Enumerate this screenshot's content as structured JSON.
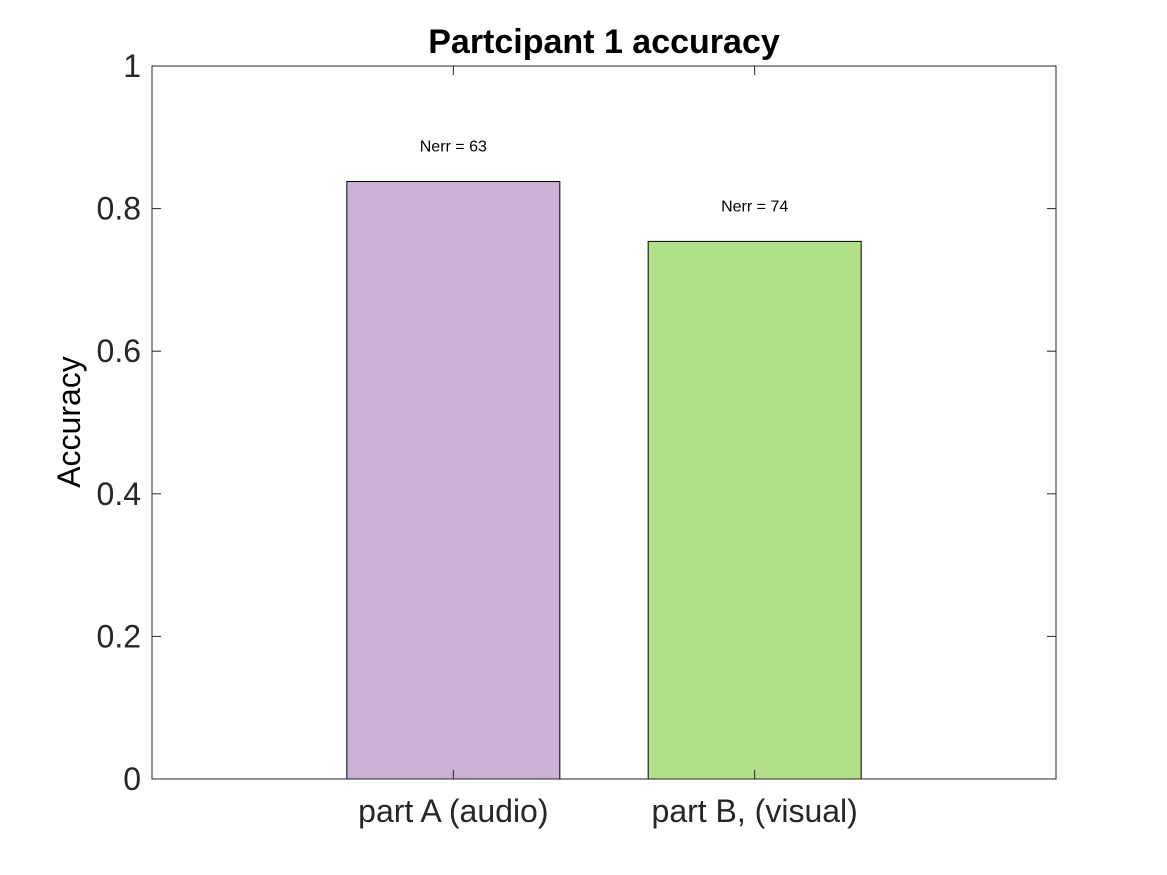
{
  "chart_data": {
    "type": "bar",
    "title": "Partcipant 1 accuracy",
    "xlabel": "",
    "ylabel": "Accuracy",
    "categories": [
      "part A (audio)",
      "part B, (visual)"
    ],
    "values": [
      0.838,
      0.754
    ],
    "data_labels": [
      "Nerr = 63",
      "Nerr = 74"
    ],
    "colors": [
      "#cab2d6",
      "#b2df8a"
    ],
    "ylim": [
      0,
      1
    ],
    "yticks": [
      0,
      0.2,
      0.4,
      0.6,
      0.8,
      1
    ],
    "ytick_labels": [
      "0",
      "0.2",
      "0.4",
      "0.6",
      "0.8",
      "1"
    ],
    "grid": false,
    "legend": "none"
  }
}
